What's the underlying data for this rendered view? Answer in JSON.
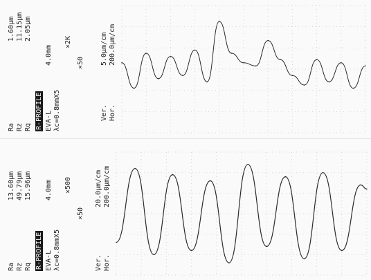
{
  "colors": {
    "trace": "#2a2a2a",
    "grid": "#d5d5d5",
    "paper": "#fafafa"
  },
  "chart_data": [
    {
      "type": "line",
      "title": "R-PROFILE",
      "roughness": [
        {
          "param": "Ra",
          "value": "1.60μm"
        },
        {
          "param": "Rz",
          "value": "11.15μm"
        },
        {
          "param": "Rq",
          "value": "2.05μm"
        }
      ],
      "eval_length": "EVA-L",
      "eval_value": "4.0mm",
      "cutoff": "λc=0.8mmX5",
      "h_mag": "×2K",
      "v_mag": "×50",
      "scale_ver": "5.0μm/cm",
      "scale_hor": "200.0μm/cm",
      "ver_label": "Ver.",
      "hor_label": "Hor.",
      "x": [
        0,
        0.2,
        0.4,
        0.6,
        0.8,
        1.0,
        1.2,
        1.4,
        1.6,
        1.8,
        2.0,
        2.2,
        2.4,
        2.6,
        2.8,
        3.0,
        3.2,
        3.4,
        3.6,
        3.8,
        4.0
      ],
      "y": [
        0.2,
        -0.6,
        0.5,
        -0.3,
        0.4,
        -0.2,
        0.6,
        -0.4,
        1.5,
        0.5,
        0.2,
        0.1,
        0.9,
        0.3,
        -0.2,
        -0.5,
        0.3,
        -0.4,
        0.2,
        -0.6,
        0.1
      ]
    },
    {
      "type": "line",
      "title": "R-PROFILE",
      "roughness": [
        {
          "param": "Ra",
          "value": "13.60μm"
        },
        {
          "param": "Rz",
          "value": "49.79μm"
        },
        {
          "param": "Rq",
          "value": "15.96μm"
        }
      ],
      "eval_length": "EVA-L",
      "eval_value": "4.0mm",
      "cutoff": "λc=0.8mmX5",
      "h_mag": "×500",
      "v_mag": "×50",
      "scale_ver": "20.0μm/cm",
      "scale_hor": "200.0μm/cm",
      "ver_label": "Ver.",
      "hor_label": "Hor.",
      "x": [
        0,
        0.3,
        0.6,
        0.9,
        1.2,
        1.5,
        1.8,
        2.1,
        2.4,
        2.7,
        3.0,
        3.3,
        3.6,
        3.9,
        4.0
      ],
      "y": [
        -8,
        28,
        -14,
        25,
        -12,
        22,
        -18,
        30,
        -10,
        24,
        -16,
        26,
        -12,
        20,
        18
      ]
    }
  ]
}
